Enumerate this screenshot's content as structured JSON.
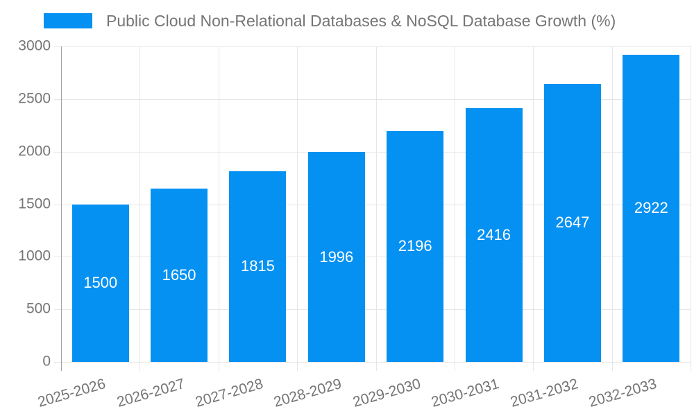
{
  "chart_data": {
    "type": "bar",
    "title": "Public Cloud Non-Relational Databases & NoSQL Database Growth (%)",
    "categories": [
      "2025-2026",
      "2026-2027",
      "2027-2028",
      "2028-2029",
      "2029-2030",
      "2030-2031",
      "2031-2032",
      "2032-2033"
    ],
    "values": [
      1500,
      1650,
      1815,
      1996,
      2196,
      2416,
      2647,
      2922
    ],
    "xlabel": "",
    "ylabel": "",
    "ylim": [
      0,
      3000
    ],
    "yticks": [
      0,
      500,
      1000,
      1500,
      2000,
      2500,
      3000
    ],
    "grid": true,
    "legend_position": "top",
    "bar_labels_visible": true
  },
  "colors": {
    "bar": "#0591f2",
    "bar_label": "#ffffff",
    "grid": "#e6e6e6",
    "axis": "#a3a3a3",
    "tick_text": "#757575",
    "background": "#ffffff"
  }
}
